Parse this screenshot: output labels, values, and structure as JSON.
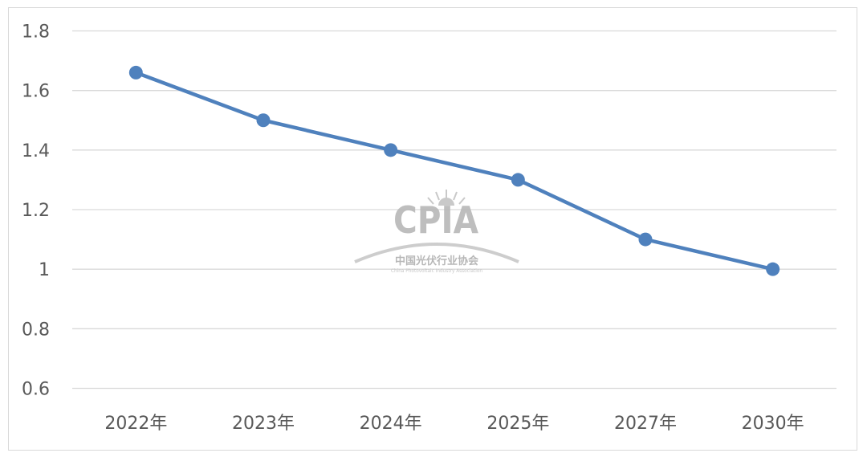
{
  "chart_data": {
    "type": "line",
    "categories": [
      "2022年",
      "2023年",
      "2024年",
      "2025年",
      "2027年",
      "2030年"
    ],
    "series": [
      {
        "values": [
          1.66,
          1.5,
          1.4,
          1.3,
          1.1,
          1.0
        ],
        "color": "#4f81bd"
      }
    ],
    "ylim": [
      0.6,
      1.8
    ],
    "yticks": [
      "1.8",
      "1.6",
      "1.4",
      "1.2",
      "1",
      "0.8",
      "0.6"
    ],
    "ytick_values": [
      1.8,
      1.6,
      1.4,
      1.2,
      1.0,
      0.8,
      0.6
    ],
    "grid": true,
    "legend": "none",
    "title": "",
    "xlabel": "",
    "ylabel": ""
  },
  "watermark": {
    "name": "CPIA",
    "subtitle": "中国光伏行业协会",
    "english": "China Photovoltaic Industry Association"
  },
  "colors": {
    "series": "#4f81bd",
    "grid": "#d9d9d9",
    "tick_text": "#595959"
  }
}
